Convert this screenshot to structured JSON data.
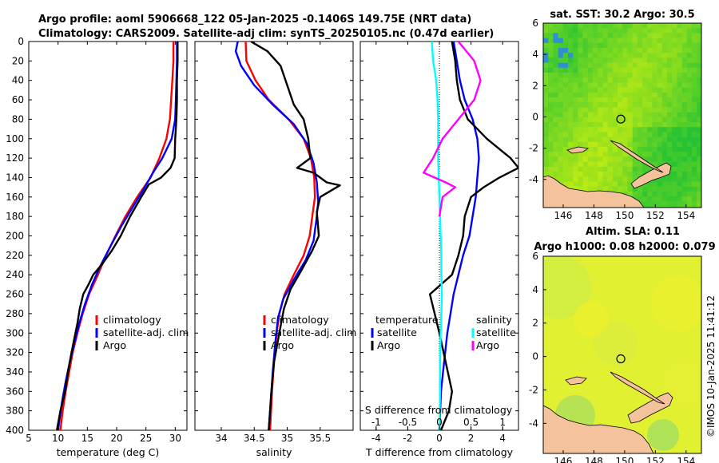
{
  "header": {
    "title_line1": "Argo profile: aoml 5906668_122 05-Jan-2025 -0.1406S 149.75E (NRT data)",
    "title_line2": "Climatology: CARS2009. Satellite-adj clim: synTS_20250105.nc (0.47d earlier)"
  },
  "timestamp": "©IMOS 10-Jan-2025 11:41:12",
  "colors": {
    "climatology": "#ff0000",
    "satellite": "#0000ff",
    "argo": "#000000",
    "sat_diff_T": "#00ffff",
    "sal_diff_argo": "#ff00ff",
    "land": "#f5c39b"
  },
  "depth_ticks": [
    "0",
    "20",
    "40",
    "60",
    "80",
    "100",
    "120",
    "140",
    "160",
    "180",
    "200",
    "220",
    "240",
    "260",
    "280",
    "300",
    "320",
    "340",
    "360",
    "380",
    "400"
  ],
  "chart_data": [
    {
      "type": "line",
      "name": "temperature",
      "xlabel": "temperature (deg C)",
      "ylabel": "depth",
      "xlim": [
        5,
        32
      ],
      "ylim": [
        400,
        0
      ],
      "xticks": [
        "5",
        "10",
        "15",
        "20",
        "25",
        "30"
      ],
      "legend": [
        "climatology",
        "satellite-adj. clim",
        "Argo"
      ],
      "series": [
        {
          "name": "climatology",
          "color": "#ff0000",
          "points": [
            [
              29.7,
              0
            ],
            [
              29.7,
              20
            ],
            [
              29.5,
              40
            ],
            [
              29.3,
              60
            ],
            [
              29.1,
              80
            ],
            [
              28.5,
              100
            ],
            [
              27.3,
              120
            ],
            [
              25.8,
              140
            ],
            [
              23.5,
              160
            ],
            [
              21.5,
              180
            ],
            [
              19.8,
              200
            ],
            [
              18.2,
              220
            ],
            [
              16.8,
              240
            ],
            [
              15.3,
              260
            ],
            [
              14.2,
              280
            ],
            [
              13.3,
              300
            ],
            [
              12.5,
              320
            ],
            [
              11.9,
              340
            ],
            [
              11.3,
              360
            ],
            [
              10.8,
              380
            ],
            [
              10.4,
              400
            ]
          ]
        },
        {
          "name": "satellite-adj. clim",
          "color": "#0000ff",
          "points": [
            [
              30.3,
              0
            ],
            [
              30.3,
              20
            ],
            [
              30.2,
              40
            ],
            [
              30.1,
              60
            ],
            [
              30.0,
              80
            ],
            [
              29.4,
              100
            ],
            [
              27.8,
              120
            ],
            [
              26.2,
              135
            ],
            [
              24.8,
              150
            ],
            [
              22.8,
              170
            ],
            [
              20.8,
              190
            ],
            [
              19.0,
              210
            ],
            [
              17.3,
              230
            ],
            [
              15.8,
              250
            ],
            [
              14.6,
              270
            ],
            [
              13.6,
              290
            ],
            [
              12.8,
              310
            ],
            [
              12.0,
              330
            ],
            [
              11.3,
              350
            ],
            [
              10.7,
              370
            ],
            [
              10.0,
              400
            ]
          ]
        },
        {
          "name": "Argo",
          "color": "#000000",
          "points": [
            [
              30.4,
              0
            ],
            [
              30.4,
              20
            ],
            [
              30.3,
              40
            ],
            [
              30.3,
              60
            ],
            [
              30.2,
              80
            ],
            [
              30.0,
              100
            ],
            [
              29.9,
              120
            ],
            [
              29.2,
              130
            ],
            [
              27.6,
              140
            ],
            [
              25.5,
              147
            ],
            [
              24.2,
              160
            ],
            [
              22.3,
              180
            ],
            [
              20.7,
              200
            ],
            [
              19.2,
              215
            ],
            [
              17.4,
              230
            ],
            [
              16.0,
              240
            ],
            [
              15.2,
              250
            ],
            [
              14.3,
              260
            ],
            [
              13.7,
              275
            ],
            [
              13.3,
              290
            ],
            [
              12.8,
              305
            ],
            [
              12.3,
              320
            ],
            [
              11.7,
              340
            ],
            [
              11.2,
              360
            ],
            [
              10.4,
              380
            ],
            [
              9.8,
              400
            ]
          ]
        }
      ]
    },
    {
      "type": "line",
      "name": "salinity",
      "xlabel": "salinity",
      "xlim": [
        33.6,
        36.0
      ],
      "ylim": [
        400,
        0
      ],
      "xticks": [
        "34",
        "34.5",
        "35",
        "35.5"
      ],
      "legend": [
        "climatology",
        "satellite-adj. clim",
        "Argo"
      ],
      "series": [
        {
          "name": "climatology",
          "color": "#ff0000",
          "points": [
            [
              34.37,
              0
            ],
            [
              34.38,
              20
            ],
            [
              34.52,
              40
            ],
            [
              34.72,
              60
            ],
            [
              35.02,
              80
            ],
            [
              35.25,
              100
            ],
            [
              35.36,
              120
            ],
            [
              35.41,
              140
            ],
            [
              35.42,
              160
            ],
            [
              35.38,
              180
            ],
            [
              35.34,
              200
            ],
            [
              35.25,
              220
            ],
            [
              35.1,
              240
            ],
            [
              34.96,
              260
            ],
            [
              34.88,
              280
            ],
            [
              34.84,
              300
            ],
            [
              34.8,
              330
            ],
            [
              34.77,
              360
            ],
            [
              34.74,
              400
            ]
          ]
        },
        {
          "name": "satellite-adj. clim",
          "color": "#0000ff",
          "points": [
            [
              34.25,
              0
            ],
            [
              34.22,
              10
            ],
            [
              34.3,
              25
            ],
            [
              34.5,
              45
            ],
            [
              34.78,
              65
            ],
            [
              35.1,
              85
            ],
            [
              35.3,
              105
            ],
            [
              35.4,
              125
            ],
            [
              35.45,
              145
            ],
            [
              35.47,
              165
            ],
            [
              35.44,
              185
            ],
            [
              35.4,
              205
            ],
            [
              35.28,
              225
            ],
            [
              35.1,
              245
            ],
            [
              34.94,
              265
            ],
            [
              34.86,
              285
            ],
            [
              34.82,
              310
            ],
            [
              34.78,
              340
            ],
            [
              34.75,
              370
            ],
            [
              34.72,
              400
            ]
          ]
        },
        {
          "name": "Argo",
          "color": "#000000",
          "points": [
            [
              34.45,
              0
            ],
            [
              34.7,
              10
            ],
            [
              34.9,
              25
            ],
            [
              35.0,
              45
            ],
            [
              35.1,
              65
            ],
            [
              35.25,
              80
            ],
            [
              35.32,
              100
            ],
            [
              35.35,
              120
            ],
            [
              35.15,
              130
            ],
            [
              35.4,
              135
            ],
            [
              35.6,
              145
            ],
            [
              35.8,
              148
            ],
            [
              35.5,
              160
            ],
            [
              35.45,
              175
            ],
            [
              35.48,
              200
            ],
            [
              35.38,
              215
            ],
            [
              35.22,
              235
            ],
            [
              35.05,
              255
            ],
            [
              34.95,
              275
            ],
            [
              34.88,
              300
            ],
            [
              34.8,
              330
            ],
            [
              34.76,
              360
            ],
            [
              34.72,
              400
            ]
          ]
        }
      ]
    },
    {
      "type": "line",
      "name": "differences",
      "xlabel": "T difference from climatology",
      "xlabel_top": "S difference from climatology",
      "xlim": [
        -5,
        5
      ],
      "x2lim": [
        -1.25,
        1.25
      ],
      "ylim": [
        400,
        0
      ],
      "xticks": [
        "-4",
        "-2",
        "0",
        "2",
        "4"
      ],
      "x2ticks": [
        "-1",
        "-0.5",
        "0",
        "0.5",
        "1"
      ],
      "legend_left_title": "temperature",
      "legend_right_title": "salinity",
      "legend_left": [
        "satellite",
        "Argo"
      ],
      "legend_right": [
        "satellite",
        "Argo"
      ],
      "series": [
        {
          "name": "temperature satellite",
          "axis": "T",
          "color": "#0000ff",
          "points": [
            [
              0.9,
              0
            ],
            [
              1.1,
              20
            ],
            [
              1.3,
              40
            ],
            [
              1.6,
              60
            ],
            [
              2.1,
              80
            ],
            [
              2.4,
              100
            ],
            [
              2.5,
              120
            ],
            [
              2.4,
              140
            ],
            [
              2.3,
              160
            ],
            [
              2.1,
              180
            ],
            [
              1.9,
              200
            ],
            [
              1.5,
              220
            ],
            [
              1.2,
              240
            ],
            [
              0.9,
              260
            ],
            [
              0.7,
              280
            ],
            [
              0.5,
              300
            ],
            [
              0.3,
              330
            ],
            [
              0.1,
              360
            ],
            [
              0.0,
              400
            ]
          ]
        },
        {
          "name": "temperature Argo",
          "axis": "T",
          "color": "#000000",
          "points": [
            [
              0.8,
              0
            ],
            [
              1.0,
              20
            ],
            [
              1.1,
              40
            ],
            [
              1.3,
              60
            ],
            [
              1.8,
              80
            ],
            [
              3.0,
              100
            ],
            [
              4.5,
              120
            ],
            [
              5.0,
              130
            ],
            [
              3.8,
              140
            ],
            [
              2.8,
              150
            ],
            [
              2.0,
              160
            ],
            [
              1.6,
              180
            ],
            [
              1.5,
              200
            ],
            [
              1.2,
              220
            ],
            [
              0.8,
              240
            ],
            [
              -0.6,
              260
            ],
            [
              -0.3,
              280
            ],
            [
              0.0,
              300
            ],
            [
              0.4,
              330
            ],
            [
              0.8,
              360
            ],
            [
              0.6,
              380
            ],
            [
              0.1,
              400
            ]
          ]
        },
        {
          "name": "salinity satellite",
          "axis": "S",
          "color": "#00ffff",
          "points": [
            [
              -0.12,
              0
            ],
            [
              -0.1,
              20
            ],
            [
              -0.05,
              40
            ],
            [
              -0.03,
              60
            ],
            [
              -0.02,
              80
            ],
            [
              -0.02,
              100
            ],
            [
              -0.02,
              120
            ],
            [
              -0.01,
              140
            ],
            [
              0.0,
              160
            ],
            [
              0.01,
              180
            ],
            [
              0.02,
              200
            ],
            [
              0.03,
              220
            ],
            [
              0.03,
              240
            ],
            [
              0.04,
              260
            ],
            [
              0.03,
              280
            ],
            [
              0.02,
              300
            ],
            [
              0.01,
              330
            ],
            [
              0.01,
              360
            ],
            [
              0.0,
              400
            ]
          ]
        },
        {
          "name": "salinity Argo",
          "axis": "S",
          "color": "#ff00ff",
          "points": [
            [
              0.3,
              0
            ],
            [
              0.55,
              20
            ],
            [
              0.65,
              40
            ],
            [
              0.55,
              60
            ],
            [
              0.3,
              80
            ],
            [
              0.05,
              100
            ],
            [
              -0.1,
              120
            ],
            [
              -0.25,
              135
            ],
            [
              0.1,
              145
            ],
            [
              0.25,
              150
            ],
            [
              0.05,
              160
            ],
            [
              0.0,
              180
            ]
          ]
        }
      ]
    },
    {
      "type": "heatmap",
      "name": "sst_map",
      "title": "sat. SST: 30.2 Argo: 30.5",
      "xlim": [
        144.7,
        155
      ],
      "ylim": [
        -5.8,
        6
      ],
      "xticks": [
        "146",
        "148",
        "150",
        "152",
        "154"
      ],
      "yticks": [
        "6",
        "4",
        "2",
        "0",
        "-2",
        "-4"
      ],
      "argo_position": [
        149.75,
        -0.14
      ]
    },
    {
      "type": "heatmap",
      "name": "sla_map",
      "title_line1": "Altim. SLA: 0.11",
      "title_line2": "Argo h1000: 0.08 h2000: 0.079",
      "xlim": [
        144.7,
        155
      ],
      "ylim": [
        -5.8,
        6
      ],
      "xticks": [
        "146",
        "148",
        "150",
        "152",
        "154"
      ],
      "yticks": [
        "6",
        "4",
        "2",
        "0",
        "-2",
        "-4"
      ],
      "argo_position": [
        149.75,
        -0.14
      ]
    }
  ]
}
